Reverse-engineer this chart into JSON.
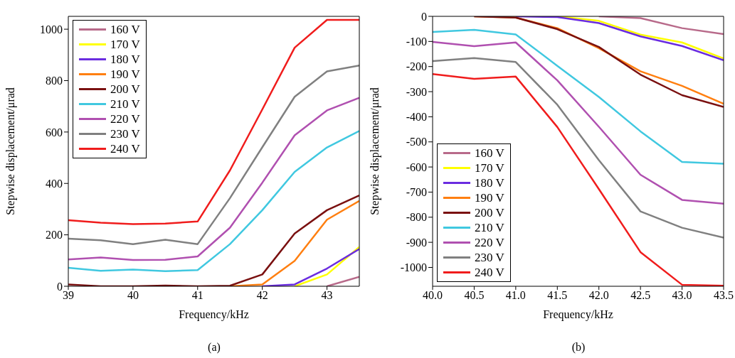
{
  "chart_data": [
    {
      "type": "line",
      "xlabel": "Frequency/kHz",
      "ylabel": "Stepwise displacement/μrad",
      "annotations": [
        "(a)"
      ],
      "x": [
        39,
        39.5,
        40,
        40.5,
        41,
        41.5,
        42,
        42.5,
        43,
        43.5
      ],
      "xlim": [
        39,
        43.5
      ],
      "xticks": [
        39,
        40,
        41,
        42,
        43
      ],
      "ylim": [
        0,
        1050
      ],
      "yticks": [
        0,
        200,
        400,
        600,
        800,
        1000
      ],
      "legend": "top left",
      "grid": false,
      "series": [
        {
          "name": "160 V",
          "color": "#b86a8a",
          "values": [
            null,
            null,
            null,
            null,
            null,
            null,
            null,
            null,
            0,
            37
          ]
        },
        {
          "name": "170 V",
          "color": "#ffff00",
          "values": [
            null,
            null,
            null,
            null,
            null,
            null,
            null,
            0,
            46,
            153
          ]
        },
        {
          "name": "180 V",
          "color": "#6a2ce0",
          "values": [
            null,
            null,
            null,
            null,
            null,
            null,
            0,
            7,
            69,
            145
          ]
        },
        {
          "name": "190 V",
          "color": "#ff7f10",
          "values": [
            null,
            null,
            null,
            null,
            null,
            0,
            7,
            99,
            259,
            332
          ]
        },
        {
          "name": "200 V",
          "color": "#7a1010",
          "values": [
            7,
            0,
            0,
            3,
            0,
            2,
            46,
            205,
            296,
            353
          ]
        },
        {
          "name": "210 V",
          "color": "#40c8e0",
          "values": [
            72,
            60,
            65,
            59,
            63,
            164,
            296,
            445,
            540,
            604
          ]
        },
        {
          "name": "220 V",
          "color": "#b050b0",
          "values": [
            104,
            112,
            102,
            103,
            116,
            228,
            403,
            587,
            684,
            733
          ]
        },
        {
          "name": "230 V",
          "color": "#808080",
          "values": [
            185,
            179,
            164,
            181,
            164,
            343,
            541,
            737,
            836,
            859
          ]
        },
        {
          "name": "240 V",
          "color": "#f01c1c",
          "values": [
            257,
            247,
            242,
            244,
            252,
            451,
            688,
            928,
            1036,
            1036
          ]
        }
      ]
    },
    {
      "type": "line",
      "xlabel": "Frequency/kHz",
      "ylabel": "Stepwise displacement/μrad",
      "annotations": [
        "(b)"
      ],
      "x": [
        40,
        40.5,
        41,
        41.5,
        42,
        42.5,
        43,
        43.5
      ],
      "xlim": [
        40,
        43.5
      ],
      "xticks": [
        {
          "value": 40,
          "label": "40.0"
        },
        {
          "value": 40.5,
          "label": "40.5"
        },
        {
          "value": 41,
          "label": "41.0"
        },
        {
          "value": 41.5,
          "label": "41.5"
        },
        {
          "value": 42,
          "label": "42.0"
        },
        {
          "value": 42.5,
          "label": "42.5"
        },
        {
          "value": 43,
          "label": "43.0"
        },
        {
          "value": 43.5,
          "label": "43.5"
        }
      ],
      "ylim": [
        -1075,
        0
      ],
      "yticks": [
        -1000,
        -900,
        -800,
        -700,
        -600,
        -500,
        -400,
        -300,
        -200,
        -100,
        0
      ],
      "legend": "bottom left",
      "grid": false,
      "series": [
        {
          "name": "160 V",
          "color": "#b86a8a",
          "values": [
            null,
            null,
            null,
            null,
            0,
            -7,
            -47,
            -71
          ]
        },
        {
          "name": "170 V",
          "color": "#ffff00",
          "values": [
            null,
            null,
            null,
            0,
            -18,
            -73,
            -104,
            -168
          ]
        },
        {
          "name": "180 V",
          "color": "#6a2ce0",
          "values": [
            null,
            null,
            0,
            -3,
            -27,
            -80,
            -118,
            -175
          ]
        },
        {
          "name": "190 V",
          "color": "#ff7f10",
          "values": [
            null,
            0,
            -5,
            -47,
            -127,
            -219,
            -277,
            -348
          ]
        },
        {
          "name": "200 V",
          "color": "#7a1010",
          "values": [
            null,
            0,
            -5,
            -51,
            -122,
            -232,
            -314,
            -361
          ]
        },
        {
          "name": "210 V",
          "color": "#40c8e0",
          "values": [
            -62,
            -54,
            -72,
            -197,
            -321,
            -458,
            -580,
            -587
          ]
        },
        {
          "name": "220 V",
          "color": "#b050b0",
          "values": [
            -102,
            -119,
            -104,
            -255,
            -440,
            -631,
            -731,
            -746
          ]
        },
        {
          "name": "230 V",
          "color": "#808080",
          "values": [
            -178,
            -166,
            -182,
            -352,
            -573,
            -777,
            -842,
            -881
          ]
        },
        {
          "name": "240 V",
          "color": "#f01c1c",
          "values": [
            -230,
            -249,
            -240,
            -441,
            -688,
            -939,
            -1069,
            -1073
          ]
        }
      ]
    }
  ]
}
